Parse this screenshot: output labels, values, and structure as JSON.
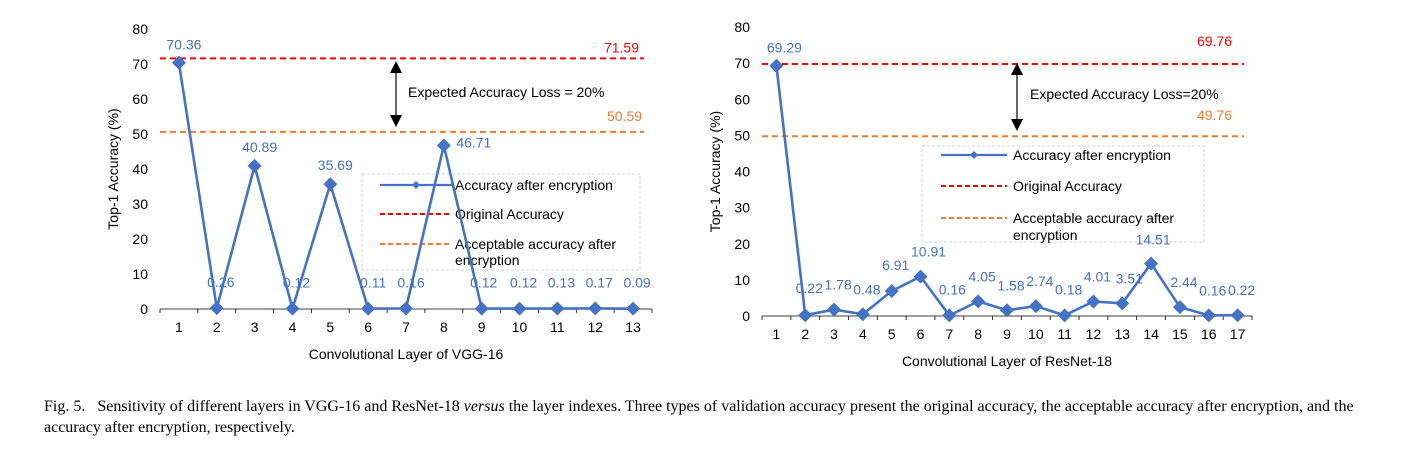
{
  "chart_data": [
    {
      "type": "line",
      "xlabel": "Convolutional Layer of VGG-16",
      "ylabel": "Top-1 Accuracy (%)",
      "ylim": [
        0,
        80
      ],
      "yticks": [
        0,
        10,
        20,
        30,
        40,
        50,
        60,
        70,
        80
      ],
      "categories": [
        "1",
        "2",
        "3",
        "4",
        "5",
        "6",
        "7",
        "8",
        "9",
        "10",
        "11",
        "12",
        "13"
      ],
      "series": [
        {
          "name": "Accuracy after encryption",
          "color": "#4472C4",
          "values": [
            70.36,
            0.26,
            40.89,
            0.12,
            35.69,
            0.11,
            0.16,
            46.71,
            0.12,
            0.12,
            0.13,
            0.17,
            0.09
          ],
          "labels": [
            "70.36",
            "0.26",
            "40.89",
            "0.12",
            "35.69",
            "0.11",
            "0.16",
            "46.71",
            "0.12",
            "0.12",
            "0.13",
            "0.17",
            "0.09"
          ]
        }
      ],
      "reference_lines": [
        {
          "name": "Original Accuracy",
          "value": 71.59,
          "label": "71.59",
          "color": "#FF0000"
        },
        {
          "name": "Acceptable accuracy after encryption",
          "value": 50.59,
          "label": "50.59",
          "color": "#ED7D31"
        }
      ],
      "annotation": "Expected Accuracy Loss = 20%",
      "legend": {
        "placement": "center-right",
        "entries": [
          "Accuracy after encryption",
          "Original Accuracy",
          "Acceptable accuracy after encryption"
        ]
      },
      "grid": false
    },
    {
      "type": "line",
      "xlabel": "Convolutional Layer of ResNet-18",
      "ylabel": "Top-1 Accuracy (%)",
      "ylim": [
        0,
        80
      ],
      "yticks": [
        0,
        10,
        20,
        30,
        40,
        50,
        60,
        70,
        80
      ],
      "categories": [
        "1",
        "2",
        "3",
        "4",
        "5",
        "6",
        "7",
        "8",
        "9",
        "10",
        "11",
        "12",
        "13",
        "14",
        "15",
        "16",
        "17"
      ],
      "series": [
        {
          "name": "Accuracy after encryption",
          "color": "#4472C4",
          "values": [
            69.29,
            0.22,
            1.78,
            0.48,
            6.91,
            10.91,
            0.16,
            4.05,
            1.58,
            2.74,
            0.18,
            4.01,
            3.51,
            14.51,
            2.44,
            0.16,
            0.22
          ],
          "labels": [
            "69.29",
            "0.22",
            "1.78",
            "0.48",
            "6.91",
            "10.91",
            "0.16",
            "4.05",
            "1.58",
            "2.74",
            "0.18",
            "4.01",
            "3.51",
            "14.51",
            "2.44",
            "0.16",
            "0.22"
          ]
        }
      ],
      "reference_lines": [
        {
          "name": "Original Accuracy",
          "value": 69.76,
          "label": "69.76",
          "color": "#FF0000"
        },
        {
          "name": "Acceptable accuracy after encryption",
          "value": 49.76,
          "label": "49.76",
          "color": "#ED7D31"
        }
      ],
      "annotation": "Expected Accuracy Loss=20%",
      "legend": {
        "placement": "center-right",
        "entries": [
          "Accuracy after encryption",
          "Original Accuracy",
          "Acceptable accuracy after encryption"
        ]
      },
      "grid": false
    }
  ],
  "caption": {
    "label": "Fig. 5.",
    "text_before": "Sensitivity of different layers in VGG-16 and ResNet-18 ",
    "emphasis": "versus",
    "text_after": " the layer indexes. Three types of validation accuracy present the original accuracy, the acceptable accuracy after encryption, and the accuracy after encryption, respectively."
  }
}
